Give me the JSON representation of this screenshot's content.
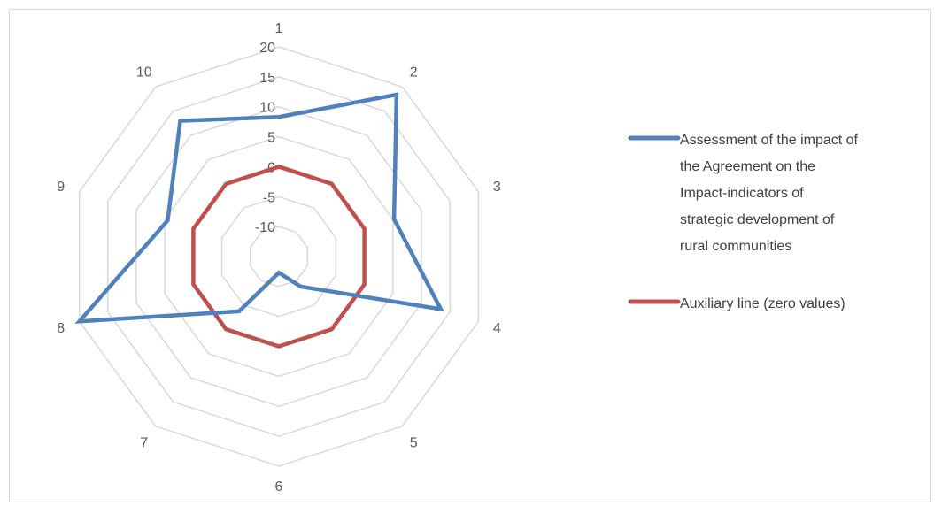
{
  "chart_data": {
    "type": "radar",
    "categories": [
      "1",
      "2",
      "3",
      "4",
      "5",
      "6",
      "7",
      "8",
      "9",
      "10"
    ],
    "r_axis": {
      "min": -15,
      "max": 20,
      "ticks": [
        -10,
        -5,
        0,
        5,
        10,
        15,
        20
      ]
    },
    "grid": true,
    "legend_position": "right",
    "series": [
      {
        "name": "Assessment of the impact of the Agreement on the Impact-indicators of strategic development of rural communities",
        "values": [
          8.3,
          18.4,
          5.2,
          13.4,
          -8.8,
          -12.3,
          -3.7,
          20,
          4.5,
          13.0
        ],
        "color": "#4f81bd"
      },
      {
        "name": "Auxiliary line (zero values)",
        "values": [
          0,
          0,
          0,
          0,
          0,
          0,
          0,
          0,
          0,
          0
        ],
        "color": "#c0504d"
      }
    ]
  },
  "legend": {
    "series_1_lines": [
      "Assessment of the impact of",
      "the Agreement on the",
      "Impact-indicators of",
      "strategic development of",
      "rural communities"
    ],
    "series_2_lines": [
      "Auxiliary line (zero values)"
    ]
  }
}
